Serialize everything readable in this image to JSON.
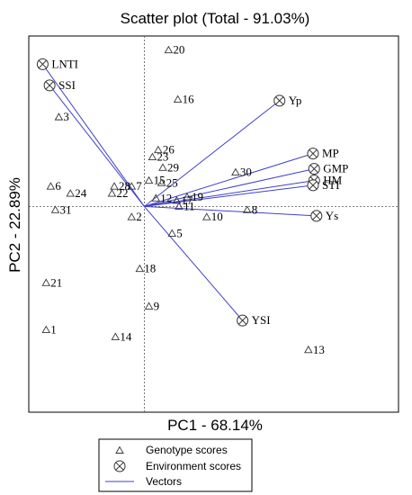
{
  "chart_data": {
    "type": "scatter",
    "title": "Scatter plot (Total - 91.03%)",
    "xlabel": "PC1 - 68.14%",
    "ylabel": "PC2 - 22.89%",
    "xlim": [
      -1.0,
      2.2
    ],
    "ylim": [
      -1.75,
      1.45
    ],
    "origin": [
      0,
      0
    ],
    "grid": false,
    "legend_placement": "bottom-center",
    "colors": {
      "vectors": "#4040c8",
      "markers": "#333333",
      "frame": "#000000",
      "axis_lines": "#555555"
    },
    "series": [
      {
        "name": "Genotype scores",
        "marker": "triangle",
        "points": [
          {
            "label": "1",
            "x": -0.85,
            "y": -1.05
          },
          {
            "label": "2",
            "x": -0.11,
            "y": -0.09
          },
          {
            "label": "3",
            "x": -0.74,
            "y": 0.76
          },
          {
            "label": "5",
            "x": 0.24,
            "y": -0.23
          },
          {
            "label": "6",
            "x": -0.81,
            "y": 0.17
          },
          {
            "label": "7",
            "x": -0.11,
            "y": 0.17
          },
          {
            "label": "8",
            "x": 0.89,
            "y": -0.03
          },
          {
            "label": "9",
            "x": 0.04,
            "y": -0.85
          },
          {
            "label": "10",
            "x": 0.54,
            "y": -0.09
          },
          {
            "label": "11",
            "x": 0.3,
            "y": 0.0
          },
          {
            "label": "12",
            "x": 0.1,
            "y": 0.07
          },
          {
            "label": "13",
            "x": 1.42,
            "y": -1.22
          },
          {
            "label": "14",
            "x": -0.25,
            "y": -1.11
          },
          {
            "label": "15",
            "x": 0.04,
            "y": 0.22
          },
          {
            "label": "16",
            "x": 0.29,
            "y": 0.91
          },
          {
            "label": "17",
            "x": 0.28,
            "y": 0.05
          },
          {
            "label": "18",
            "x": -0.04,
            "y": -0.53
          },
          {
            "label": "19",
            "x": 0.37,
            "y": 0.08
          },
          {
            "label": "20",
            "x": 0.21,
            "y": 1.33
          },
          {
            "label": "21",
            "x": -0.85,
            "y": -0.65
          },
          {
            "label": "22",
            "x": -0.28,
            "y": 0.11
          },
          {
            "label": "23",
            "x": 0.07,
            "y": 0.42
          },
          {
            "label": "24",
            "x": -0.64,
            "y": 0.11
          },
          {
            "label": "25",
            "x": 0.15,
            "y": 0.2
          },
          {
            "label": "26",
            "x": 0.12,
            "y": 0.48
          },
          {
            "label": "28",
            "x": -0.26,
            "y": 0.17
          },
          {
            "label": "29",
            "x": 0.16,
            "y": 0.33
          },
          {
            "label": "30",
            "x": 0.79,
            "y": 0.29
          },
          {
            "label": "31",
            "x": -0.77,
            "y": -0.03
          }
        ]
      },
      {
        "name": "Environment scores",
        "marker": "circle-x",
        "points": [
          {
            "label": "LNTI",
            "x": -0.88,
            "y": 1.21
          },
          {
            "label": "SSI",
            "x": -0.82,
            "y": 1.03
          },
          {
            "label": "Yp",
            "x": 1.17,
            "y": 0.9
          },
          {
            "label": "MP",
            "x": 1.46,
            "y": 0.45
          },
          {
            "label": "GMP",
            "x": 1.47,
            "y": 0.32
          },
          {
            "label": "HM",
            "x": 1.47,
            "y": 0.22
          },
          {
            "label": "STI",
            "x": 1.46,
            "y": 0.18
          },
          {
            "label": "Ys",
            "x": 1.49,
            "y": -0.08
          },
          {
            "label": "YSI",
            "x": 0.85,
            "y": -0.97
          }
        ]
      },
      {
        "name": "Vectors",
        "marker": "line"
      }
    ]
  }
}
